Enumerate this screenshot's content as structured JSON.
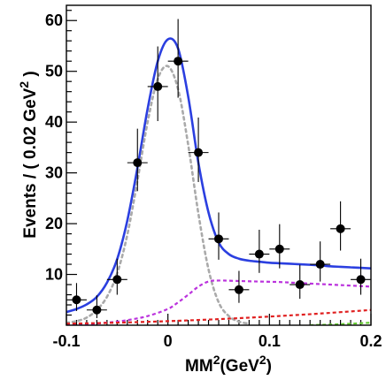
{
  "chart_data": {
    "type": "scatter",
    "xlabel": "MM",
    "xlabel_sup": "2",
    "xlabel_unit": "(GeV",
    "xlabel_unit_sup": "2",
    "xlabel_close": ")",
    "ylabel": "Events / ( 0.02 GeV",
    "ylabel_sup": "2",
    "ylabel_close": " )",
    "xlim": [
      -0.1,
      0.2
    ],
    "ylim": [
      0,
      63
    ],
    "grid": false,
    "x_ticks": [
      {
        "value": -0.1,
        "label": "-0.1"
      },
      {
        "value": 0,
        "label": "0"
      },
      {
        "value": 0.1,
        "label": "0.1"
      },
      {
        "value": 0.2,
        "label": "0.2"
      }
    ],
    "y_ticks": [
      {
        "value": 10,
        "label": "10"
      },
      {
        "value": 20,
        "label": "20"
      },
      {
        "value": 30,
        "label": "30"
      },
      {
        "value": 40,
        "label": "40"
      },
      {
        "value": 50,
        "label": "50"
      },
      {
        "value": 60,
        "label": "60"
      }
    ],
    "points": [
      {
        "x": -0.09,
        "y": 5,
        "err_lo": 2.2,
        "err_hi": 3.3
      },
      {
        "x": -0.07,
        "y": 3,
        "err_lo": 1.6,
        "err_hi": 2.9
      },
      {
        "x": -0.05,
        "y": 9,
        "err_lo": 3.0,
        "err_hi": 4.1
      },
      {
        "x": -0.03,
        "y": 32,
        "err_lo": 5.6,
        "err_hi": 6.7
      },
      {
        "x": -0.01,
        "y": 47,
        "err_lo": 6.8,
        "err_hi": 7.9
      },
      {
        "x": 0.01,
        "y": 52,
        "err_lo": 7.2,
        "err_hi": 8.3
      },
      {
        "x": 0.03,
        "y": 34,
        "err_lo": 5.8,
        "err_hi": 6.9
      },
      {
        "x": 0.05,
        "y": 17,
        "err_lo": 4.1,
        "err_hi": 5.2
      },
      {
        "x": 0.07,
        "y": 7,
        "err_lo": 2.6,
        "err_hi": 3.7
      },
      {
        "x": 0.09,
        "y": 14,
        "err_lo": 3.7,
        "err_hi": 4.8
      },
      {
        "x": 0.11,
        "y": 15,
        "err_lo": 3.8,
        "err_hi": 4.9
      },
      {
        "x": 0.13,
        "y": 8,
        "err_lo": 2.8,
        "err_hi": 3.9
      },
      {
        "x": 0.15,
        "y": 12,
        "err_lo": 3.4,
        "err_hi": 4.5
      },
      {
        "x": 0.17,
        "y": 19,
        "err_lo": 4.3,
        "err_hi": 5.4
      },
      {
        "x": 0.19,
        "y": 9,
        "err_lo": 3.0,
        "err_hi": 4.1
      }
    ],
    "x_bin_halfwidth": 0.01,
    "curves": [
      {
        "style": "solid",
        "color": "#2b3fe0",
        "x": [
          -0.1,
          -0.09,
          -0.08,
          -0.07,
          -0.06,
          -0.05,
          -0.04,
          -0.03,
          -0.02,
          -0.01,
          0,
          0.01,
          0.02,
          0.03,
          0.04,
          0.05,
          0.06,
          0.07,
          0.08,
          0.09,
          0.1,
          0.11,
          0.12,
          0.13,
          0.14,
          0.15,
          0.16,
          0.17,
          0.18,
          0.19,
          0.2
        ],
        "y": [
          2.6,
          3.2,
          4.1,
          5.6,
          8.4,
          13.0,
          20.6,
          31.0,
          42.6,
          52.0,
          56.3,
          54.5,
          45.0,
          32.0,
          22.2,
          16.3,
          14.0,
          13.1,
          12.7,
          12.5,
          12.3,
          12.2,
          12.1,
          12.0,
          11.9,
          11.8,
          11.6,
          11.5,
          11.4,
          11.3,
          11.2
        ]
      },
      {
        "style": "dotted",
        "color": "#aaaaaa",
        "x": [
          -0.1,
          -0.09,
          -0.08,
          -0.07,
          -0.06,
          -0.05,
          -0.04,
          -0.03,
          -0.02,
          -0.01,
          0,
          0.01,
          0.02,
          0.03,
          0.04,
          0.05,
          0.06,
          0.07,
          0.08
        ],
        "y": [
          0.5,
          0.8,
          1.5,
          3.0,
          5.6,
          10.2,
          17.8,
          28.5,
          40.0,
          48.5,
          51.0,
          46.5,
          35.5,
          22.0,
          11.0,
          4.5,
          1.8,
          0.7,
          0.3
        ]
      },
      {
        "style": "dashed",
        "color": "#bb33dd",
        "x": [
          -0.1,
          -0.08,
          -0.06,
          -0.04,
          -0.02,
          0,
          0.01,
          0.02,
          0.03,
          0.04,
          0.05,
          0.07,
          0.09,
          0.11,
          0.13,
          0.15,
          0.17,
          0.19,
          0.2
        ],
        "y": [
          0,
          0.2,
          0.5,
          1.0,
          1.8,
          3.2,
          4.5,
          6.0,
          7.6,
          8.6,
          8.8,
          8.7,
          8.6,
          8.5,
          8.3,
          8.1,
          7.9,
          7.7,
          7.6
        ]
      },
      {
        "style": "dashed",
        "color": "#e02020",
        "x": [
          -0.1,
          -0.05,
          0,
          0.05,
          0.1,
          0.15,
          0.2
        ],
        "y": [
          0.3,
          0.5,
          0.8,
          1.2,
          1.7,
          2.3,
          3.0
        ]
      },
      {
        "style": "dashed",
        "color": "#66cc33",
        "x": [
          0.14,
          0.17,
          0.2
        ],
        "y": [
          0,
          0.2,
          0.5
        ]
      }
    ]
  }
}
